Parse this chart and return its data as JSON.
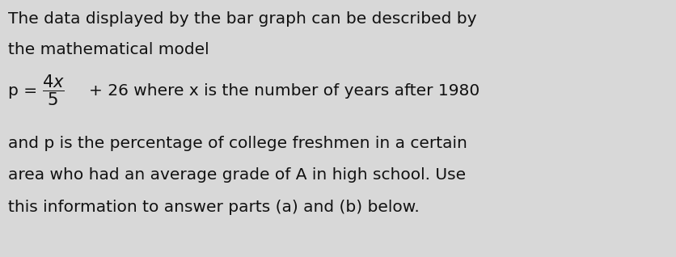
{
  "background_color": "#d8d8d8",
  "text_color": "#111111",
  "line1": "The data displayed by the bar graph can be described by",
  "line2": "the mathematical model",
  "formula_rest": "+ 26 where x is the number of years after 1980",
  "line4": "and p is the percentage of college freshmen in a certain",
  "line5": "area who had an average grade of A in high school. Use",
  "line6": "this information to answer parts (a) and (b) below.",
  "fontsize_main": 14.5,
  "font_family": "DejaVu Sans"
}
